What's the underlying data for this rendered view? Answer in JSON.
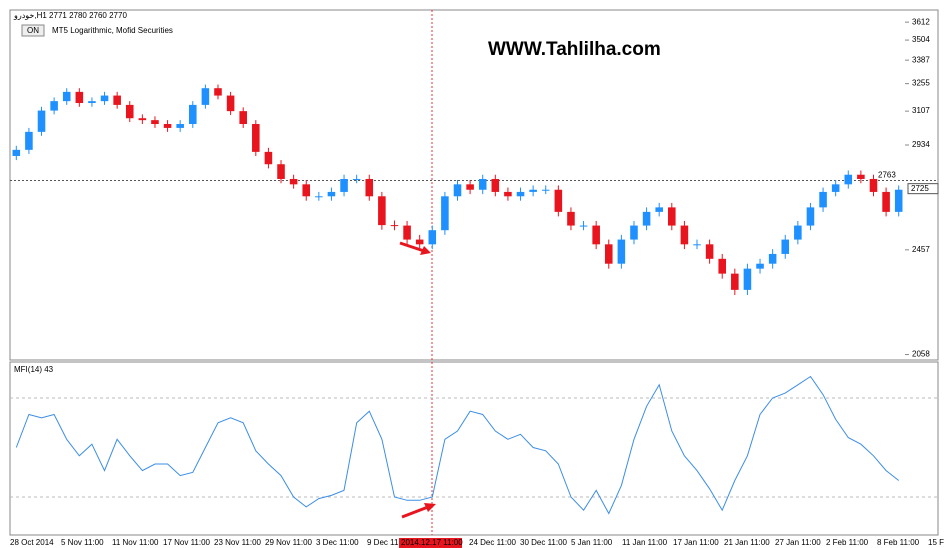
{
  "chart_data": [
    {
      "type": "candlestick",
      "title": "خودرو,H1  2771 2780 2760 2770",
      "button": "ON",
      "subtitle": "MT5 Logarithmic, Mofid Securities",
      "watermark": "WWW.Tahlilha.com",
      "log_scale": true,
      "up_color": "#1e90ff",
      "down_color": "#e8141e",
      "ylim": [
        2046,
        3687
      ],
      "yticks": [
        3612,
        3504,
        3387,
        3255,
        3107,
        2934,
        2457,
        2058
      ],
      "price_line": 2763,
      "bid": 2725,
      "x_labels": [
        "28 Oct 2014",
        "5 Nov 11:00",
        "11 Nov 11:00",
        "17 Nov 11:00",
        "23 Nov 11:00",
        "29 Nov 11:00",
        "3 Dec 11:00",
        "9 Dec 11:00",
        null,
        "24 Dec 11:00",
        "30 Dec 11:00",
        "5 Jan 11:00",
        "11 Jan 11:00",
        "17 Jan 11:00",
        "21 Jan 11:00",
        "27 Jan 11:00",
        "2 Feb 11:00",
        "8 Feb 11:00",
        "15 F"
      ],
      "crosshair_label": "2014.12.17 11:00",
      "open": [
        2880,
        2910,
        3000,
        3110,
        3160,
        3210,
        3150,
        3160,
        3190,
        3140,
        3070,
        3060,
        3040,
        3020,
        3040,
        3140,
        3230,
        3190,
        3107,
        3040,
        2900,
        2840,
        2770,
        2745,
        2690,
        2690,
        2710,
        2770,
        2770,
        2690,
        2562,
        2560,
        2500,
        2480,
        2540,
        2690,
        2745,
        2720,
        2770,
        2710,
        2690,
        2710,
        2720,
        2720,
        2620,
        2560,
        2560,
        2480,
        2400,
        2500,
        2560,
        2620,
        2640,
        2560,
        2480,
        2480,
        2420,
        2360,
        2296,
        2380,
        2400,
        2440,
        2500,
        2560,
        2640,
        2710,
        2745,
        2790,
        2770,
        2710,
        2620
      ],
      "high": [
        2930,
        3020,
        3130,
        3180,
        3230,
        3230,
        3180,
        3210,
        3210,
        3160,
        3090,
        3080,
        3060,
        3060,
        3160,
        3250,
        3250,
        3210,
        3127,
        3060,
        2920,
        2860,
        2790,
        2765,
        2710,
        2730,
        2790,
        2790,
        2790,
        2710,
        2582,
        2580,
        2520,
        2560,
        2710,
        2765,
        2765,
        2790,
        2790,
        2730,
        2730,
        2740,
        2740,
        2740,
        2640,
        2580,
        2580,
        2500,
        2520,
        2580,
        2640,
        2660,
        2660,
        2580,
        2500,
        2500,
        2440,
        2380,
        2400,
        2420,
        2460,
        2520,
        2580,
        2660,
        2730,
        2765,
        2810,
        2810,
        2790,
        2730,
        2740
      ],
      "low": [
        2860,
        2890,
        2980,
        3090,
        3140,
        3130,
        3130,
        3140,
        3120,
        3050,
        3040,
        3020,
        3000,
        3000,
        3020,
        3120,
        3170,
        3087,
        3020,
        2880,
        2820,
        2750,
        2725,
        2670,
        2670,
        2670,
        2690,
        2750,
        2670,
        2542,
        2540,
        2480,
        2460,
        2460,
        2520,
        2670,
        2700,
        2700,
        2690,
        2670,
        2670,
        2690,
        2700,
        2600,
        2540,
        2540,
        2460,
        2380,
        2380,
        2480,
        2540,
        2600,
        2540,
        2460,
        2460,
        2400,
        2340,
        2276,
        2276,
        2360,
        2380,
        2420,
        2480,
        2540,
        2620,
        2690,
        2725,
        2750,
        2690,
        2600,
        2600
      ],
      "close": [
        2910,
        3000,
        3110,
        3160,
        3210,
        3150,
        3160,
        3190,
        3140,
        3070,
        3060,
        3040,
        3020,
        3040,
        3140,
        3230,
        3190,
        3107,
        3040,
        2900,
        2840,
        2770,
        2745,
        2690,
        2690,
        2710,
        2770,
        2770,
        2690,
        2562,
        2560,
        2500,
        2480,
        2540,
        2690,
        2745,
        2720,
        2770,
        2710,
        2690,
        2710,
        2720,
        2720,
        2620,
        2560,
        2560,
        2480,
        2400,
        2500,
        2560,
        2620,
        2640,
        2560,
        2480,
        2480,
        2420,
        2360,
        2296,
        2380,
        2400,
        2440,
        2500,
        2560,
        2640,
        2710,
        2745,
        2790,
        2770,
        2710,
        2620,
        2720
      ]
    },
    {
      "type": "line",
      "title": "MFI(14) 43",
      "color": "#3c8ee6",
      "ylim": [
        0,
        100
      ],
      "levels": [
        20,
        80
      ],
      "values": [
        50,
        70,
        68,
        70,
        55,
        45,
        52,
        36,
        55,
        45,
        36,
        40,
        40,
        33,
        35,
        50,
        65,
        68,
        65,
        48,
        40,
        33,
        20,
        14,
        19,
        21,
        24,
        65,
        72,
        55,
        20,
        18,
        18,
        20,
        55,
        60,
        72,
        70,
        60,
        55,
        58,
        50,
        48,
        40,
        20,
        12,
        24,
        10,
        27,
        55,
        75,
        88,
        60,
        45,
        36,
        25,
        12,
        30,
        45,
        70,
        80,
        83,
        88,
        93,
        82,
        67,
        56,
        52,
        45,
        36,
        30
      ]
    }
  ]
}
